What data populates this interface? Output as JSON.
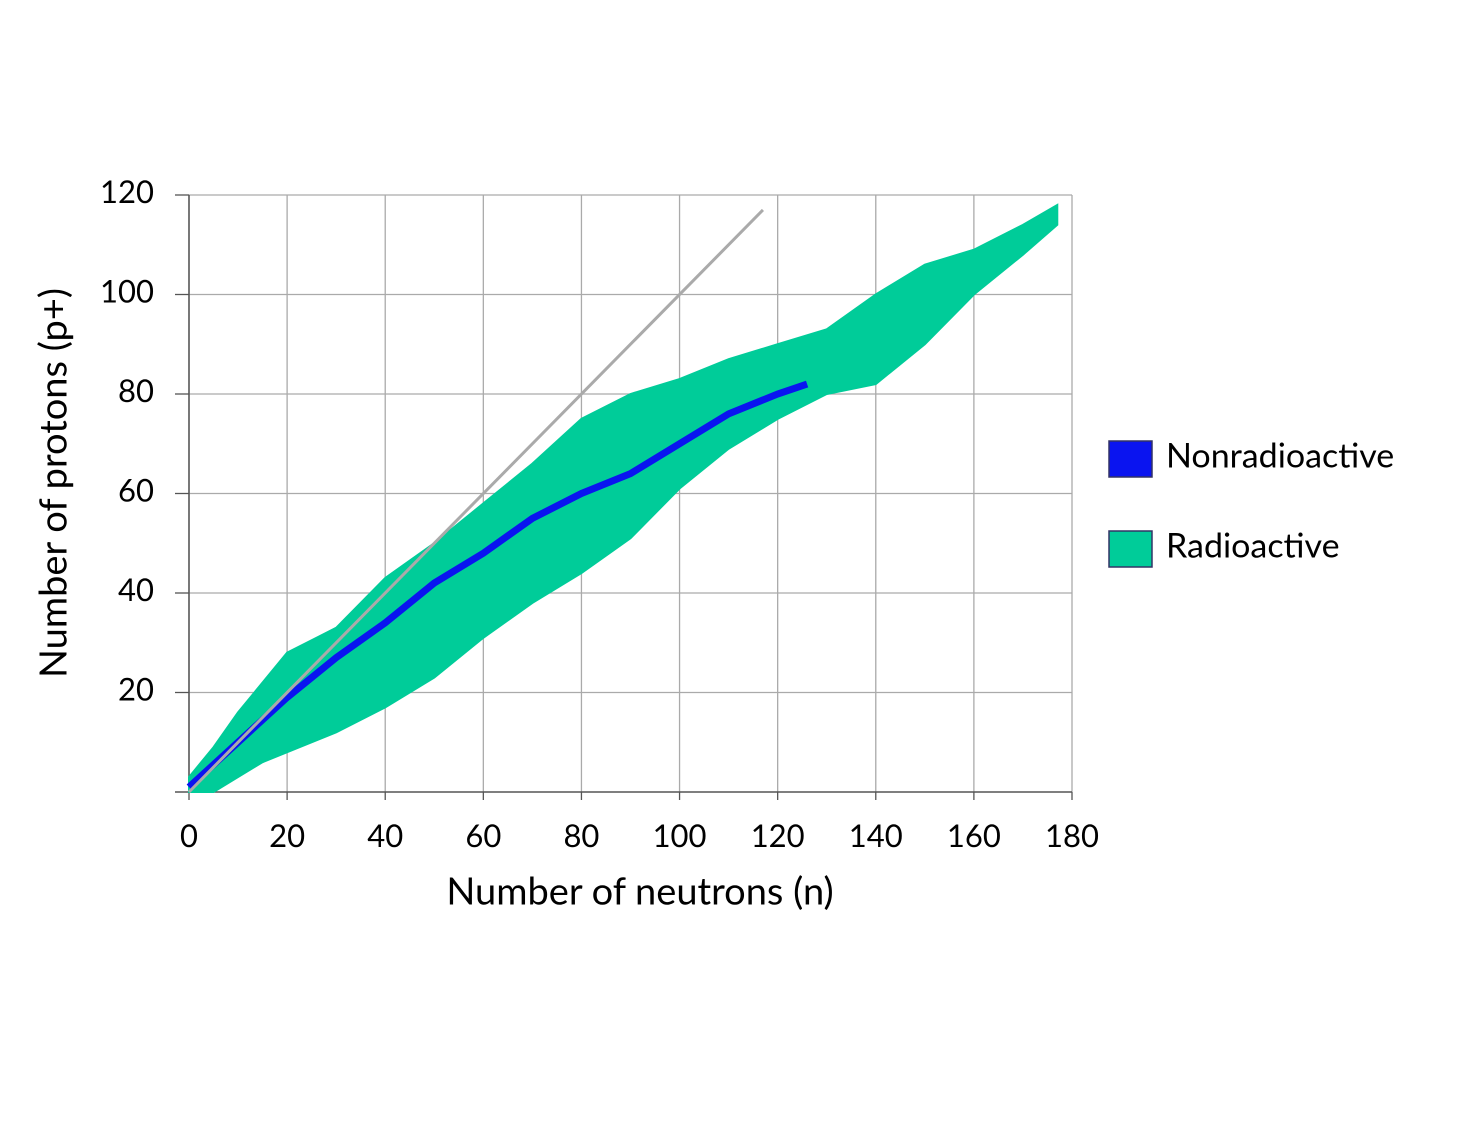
{
  "chart_data": {
    "type": "area",
    "xlabel": "Number of neutrons (n)",
    "ylabel": "Number of protons (p+)",
    "xlim": [
      0,
      180
    ],
    "ylim": [
      0,
      120
    ],
    "xticks": [
      0,
      20,
      40,
      60,
      80,
      100,
      120,
      140,
      160,
      180
    ],
    "yticks": [
      20,
      40,
      60,
      80,
      100,
      120
    ],
    "grid": true,
    "legend": "right",
    "series": [
      {
        "name": "Nonradioactive",
        "color": "#0a14f0",
        "kind": "line",
        "x": [
          0,
          10,
          20,
          30,
          40,
          50,
          60,
          70,
          80,
          90,
          100,
          110,
          120,
          126
        ],
        "values": [
          1,
          10,
          19,
          27,
          34,
          42,
          48,
          55,
          60,
          64,
          70,
          76,
          80,
          82
        ]
      },
      {
        "name": "Radioactive",
        "color": "#00cc99",
        "kind": "band",
        "x": [
          0,
          5,
          10,
          15,
          20,
          30,
          40,
          50,
          60,
          70,
          80,
          90,
          100,
          110,
          120,
          130,
          140,
          150,
          160,
          170,
          177
        ],
        "values": [
          3,
          9,
          16,
          22,
          28,
          33,
          43,
          50,
          58,
          66,
          75,
          80,
          83,
          87,
          90,
          93,
          100,
          106,
          109,
          114,
          118
        ],
        "low": [
          0,
          0,
          3,
          6,
          8,
          12,
          17,
          23,
          31,
          38,
          44,
          51,
          61,
          69,
          75,
          80,
          82,
          90,
          100,
          108,
          114
        ]
      }
    ],
    "reference_line": {
      "x": [
        0,
        117
      ],
      "values": [
        0,
        117
      ],
      "color": "#aaaaaa"
    }
  }
}
